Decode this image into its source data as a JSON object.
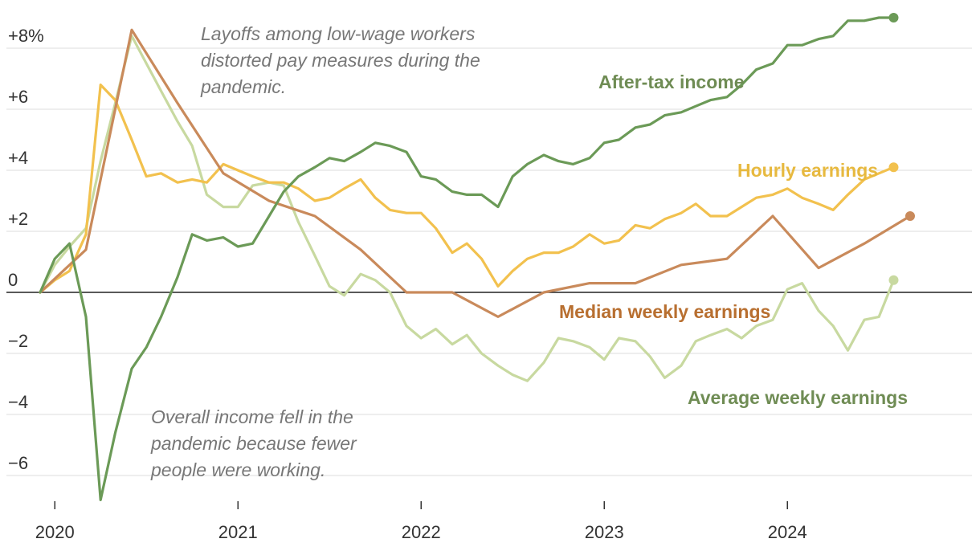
{
  "chart_data": {
    "type": "line",
    "x_unit": "year",
    "xlim": [
      2019.92,
      2024.92
    ],
    "ylim": [
      -6.8,
      8.6
    ],
    "y_ticks": [
      {
        "value": 8,
        "label": "+8%"
      },
      {
        "value": 6,
        "label": "+6"
      },
      {
        "value": 4,
        "label": "+4"
      },
      {
        "value": 2,
        "label": "+2"
      },
      {
        "value": 0,
        "label": "0"
      },
      {
        "value": -2,
        "label": "−2"
      },
      {
        "value": -4,
        "label": "−4"
      },
      {
        "value": -6,
        "label": "−6"
      }
    ],
    "x_ticks": [
      {
        "value": 2020,
        "label": "2020"
      },
      {
        "value": 2021,
        "label": "2021"
      },
      {
        "value": 2022,
        "label": "2022"
      },
      {
        "value": 2023,
        "label": "2023"
      },
      {
        "value": 2024,
        "label": "2024"
      }
    ],
    "series": [
      {
        "name": "Average weekly earnings",
        "label": "Average weekly earnings",
        "color": "#c8d9a0",
        "label_color": "#6f8c54",
        "points": [
          [
            2019.92,
            0.0
          ],
          [
            2020.0,
            0.9
          ],
          [
            2020.08,
            1.5
          ],
          [
            2020.17,
            2.1
          ],
          [
            2020.25,
            4.3
          ],
          [
            2020.33,
            6.2
          ],
          [
            2020.42,
            8.4
          ],
          [
            2020.5,
            7.5
          ],
          [
            2020.58,
            6.6
          ],
          [
            2020.67,
            5.6
          ],
          [
            2020.75,
            4.8
          ],
          [
            2020.83,
            3.2
          ],
          [
            2020.92,
            2.8
          ],
          [
            2021.0,
            2.8
          ],
          [
            2021.08,
            3.5
          ],
          [
            2021.17,
            3.6
          ],
          [
            2021.25,
            3.5
          ],
          [
            2021.33,
            2.3
          ],
          [
            2021.42,
            1.2
          ],
          [
            2021.5,
            0.2
          ],
          [
            2021.58,
            -0.1
          ],
          [
            2021.67,
            0.6
          ],
          [
            2021.75,
            0.4
          ],
          [
            2021.83,
            0.0
          ],
          [
            2021.92,
            -1.1
          ],
          [
            2022.0,
            -1.5
          ],
          [
            2022.08,
            -1.2
          ],
          [
            2022.17,
            -1.7
          ],
          [
            2022.25,
            -1.4
          ],
          [
            2022.33,
            -2.0
          ],
          [
            2022.42,
            -2.4
          ],
          [
            2022.5,
            -2.7
          ],
          [
            2022.58,
            -2.9
          ],
          [
            2022.67,
            -2.3
          ],
          [
            2022.75,
            -1.5
          ],
          [
            2022.83,
            -1.6
          ],
          [
            2022.92,
            -1.8
          ],
          [
            2023.0,
            -2.2
          ],
          [
            2023.08,
            -1.5
          ],
          [
            2023.17,
            -1.6
          ],
          [
            2023.25,
            -2.1
          ],
          [
            2023.33,
            -2.8
          ],
          [
            2023.42,
            -2.4
          ],
          [
            2023.5,
            -1.6
          ],
          [
            2023.58,
            -1.4
          ],
          [
            2023.67,
            -1.2
          ],
          [
            2023.75,
            -1.5
          ],
          [
            2023.83,
            -1.1
          ],
          [
            2023.92,
            -0.9
          ],
          [
            2024.0,
            0.1
          ],
          [
            2024.08,
            0.3
          ],
          [
            2024.17,
            -0.6
          ],
          [
            2024.25,
            -1.1
          ],
          [
            2024.33,
            -1.9
          ],
          [
            2024.42,
            -0.9
          ],
          [
            2024.5,
            -0.8
          ],
          [
            2024.58,
            0.4
          ]
        ]
      },
      {
        "name": "Hourly earnings",
        "label": "Hourly earnings",
        "color": "#f2c14e",
        "label_color": "#e7b93f",
        "points": [
          [
            2019.92,
            0.0
          ],
          [
            2020.0,
            0.4
          ],
          [
            2020.08,
            0.7
          ],
          [
            2020.17,
            1.9
          ],
          [
            2020.25,
            6.8
          ],
          [
            2020.33,
            6.3
          ],
          [
            2020.42,
            5.0
          ],
          [
            2020.5,
            3.8
          ],
          [
            2020.58,
            3.9
          ],
          [
            2020.67,
            3.6
          ],
          [
            2020.75,
            3.7
          ],
          [
            2020.83,
            3.6
          ],
          [
            2020.92,
            4.2
          ],
          [
            2021.0,
            4.0
          ],
          [
            2021.08,
            3.8
          ],
          [
            2021.17,
            3.6
          ],
          [
            2021.25,
            3.6
          ],
          [
            2021.33,
            3.4
          ],
          [
            2021.42,
            3.0
          ],
          [
            2021.5,
            3.1
          ],
          [
            2021.58,
            3.4
          ],
          [
            2021.67,
            3.7
          ],
          [
            2021.75,
            3.1
          ],
          [
            2021.83,
            2.7
          ],
          [
            2021.92,
            2.6
          ],
          [
            2022.0,
            2.6
          ],
          [
            2022.08,
            2.1
          ],
          [
            2022.17,
            1.3
          ],
          [
            2022.25,
            1.6
          ],
          [
            2022.33,
            1.1
          ],
          [
            2022.42,
            0.2
          ],
          [
            2022.5,
            0.7
          ],
          [
            2022.58,
            1.1
          ],
          [
            2022.67,
            1.3
          ],
          [
            2022.75,
            1.3
          ],
          [
            2022.83,
            1.5
          ],
          [
            2022.92,
            1.9
          ],
          [
            2023.0,
            1.6
          ],
          [
            2023.08,
            1.7
          ],
          [
            2023.17,
            2.2
          ],
          [
            2023.25,
            2.1
          ],
          [
            2023.33,
            2.4
          ],
          [
            2023.42,
            2.6
          ],
          [
            2023.5,
            2.9
          ],
          [
            2023.58,
            2.5
          ],
          [
            2023.67,
            2.5
          ],
          [
            2023.75,
            2.8
          ],
          [
            2023.83,
            3.1
          ],
          [
            2023.92,
            3.2
          ],
          [
            2024.0,
            3.4
          ],
          [
            2024.08,
            3.1
          ],
          [
            2024.17,
            2.9
          ],
          [
            2024.25,
            2.7
          ],
          [
            2024.33,
            3.2
          ],
          [
            2024.42,
            3.7
          ],
          [
            2024.5,
            3.9
          ],
          [
            2024.58,
            4.1
          ]
        ]
      },
      {
        "name": "Median weekly earnings",
        "label": "Median weekly earnings",
        "color": "#c98a5b",
        "label_color": "#b86f30",
        "points": [
          [
            2019.92,
            0.0
          ],
          [
            2020.17,
            1.4
          ],
          [
            2020.42,
            8.6
          ],
          [
            2020.67,
            6.2
          ],
          [
            2020.92,
            3.9
          ],
          [
            2021.17,
            3.0
          ],
          [
            2021.42,
            2.5
          ],
          [
            2021.67,
            1.4
          ],
          [
            2021.92,
            0.0
          ],
          [
            2022.17,
            0.0
          ],
          [
            2022.42,
            -0.8
          ],
          [
            2022.67,
            0.0
          ],
          [
            2022.92,
            0.3
          ],
          [
            2023.17,
            0.3
          ],
          [
            2023.42,
            0.9
          ],
          [
            2023.67,
            1.1
          ],
          [
            2023.92,
            2.5
          ],
          [
            2024.17,
            0.8
          ],
          [
            2024.42,
            1.6
          ],
          [
            2024.67,
            2.5
          ]
        ]
      },
      {
        "name": "After-tax income",
        "label": "After-tax income",
        "color": "#6b9a57",
        "label_color": "#6f8c54",
        "points": [
          [
            2019.92,
            0.0
          ],
          [
            2020.0,
            1.1
          ],
          [
            2020.08,
            1.6
          ],
          [
            2020.17,
            -0.8
          ],
          [
            2020.25,
            -6.8
          ],
          [
            2020.33,
            -4.6
          ],
          [
            2020.42,
            -2.5
          ],
          [
            2020.5,
            -1.8
          ],
          [
            2020.58,
            -0.8
          ],
          [
            2020.67,
            0.5
          ],
          [
            2020.75,
            1.9
          ],
          [
            2020.83,
            1.7
          ],
          [
            2020.92,
            1.8
          ],
          [
            2021.0,
            1.5
          ],
          [
            2021.08,
            1.6
          ],
          [
            2021.17,
            2.5
          ],
          [
            2021.25,
            3.3
          ],
          [
            2021.33,
            3.8
          ],
          [
            2021.42,
            4.1
          ],
          [
            2021.5,
            4.4
          ],
          [
            2021.58,
            4.3
          ],
          [
            2021.67,
            4.6
          ],
          [
            2021.75,
            4.9
          ],
          [
            2021.83,
            4.8
          ],
          [
            2021.92,
            4.6
          ],
          [
            2022.0,
            3.8
          ],
          [
            2022.08,
            3.7
          ],
          [
            2022.17,
            3.3
          ],
          [
            2022.25,
            3.2
          ],
          [
            2022.33,
            3.2
          ],
          [
            2022.42,
            2.8
          ],
          [
            2022.5,
            3.8
          ],
          [
            2022.58,
            4.2
          ],
          [
            2022.67,
            4.5
          ],
          [
            2022.75,
            4.3
          ],
          [
            2022.83,
            4.2
          ],
          [
            2022.92,
            4.4
          ],
          [
            2023.0,
            4.9
          ],
          [
            2023.08,
            5.0
          ],
          [
            2023.17,
            5.4
          ],
          [
            2023.25,
            5.5
          ],
          [
            2023.33,
            5.8
          ],
          [
            2023.42,
            5.9
          ],
          [
            2023.5,
            6.1
          ],
          [
            2023.58,
            6.3
          ],
          [
            2023.67,
            6.4
          ],
          [
            2023.75,
            6.8
          ],
          [
            2023.83,
            7.3
          ],
          [
            2023.92,
            7.5
          ],
          [
            2024.0,
            8.1
          ],
          [
            2024.08,
            8.1
          ],
          [
            2024.17,
            8.3
          ],
          [
            2024.25,
            8.4
          ],
          [
            2024.33,
            8.9
          ],
          [
            2024.42,
            8.9
          ],
          [
            2024.5,
            9.0
          ],
          [
            2024.58,
            9.0
          ]
        ]
      }
    ],
    "annotations": [
      {
        "name": "layoffs-annotation",
        "lines": [
          "Layoffs among low-wage workers",
          "distorted pay measures during the",
          "pandemic."
        ]
      },
      {
        "name": "income-annotation",
        "lines": [
          "Overall income fell in the",
          "pandemic because fewer",
          "people were working."
        ]
      }
    ]
  }
}
